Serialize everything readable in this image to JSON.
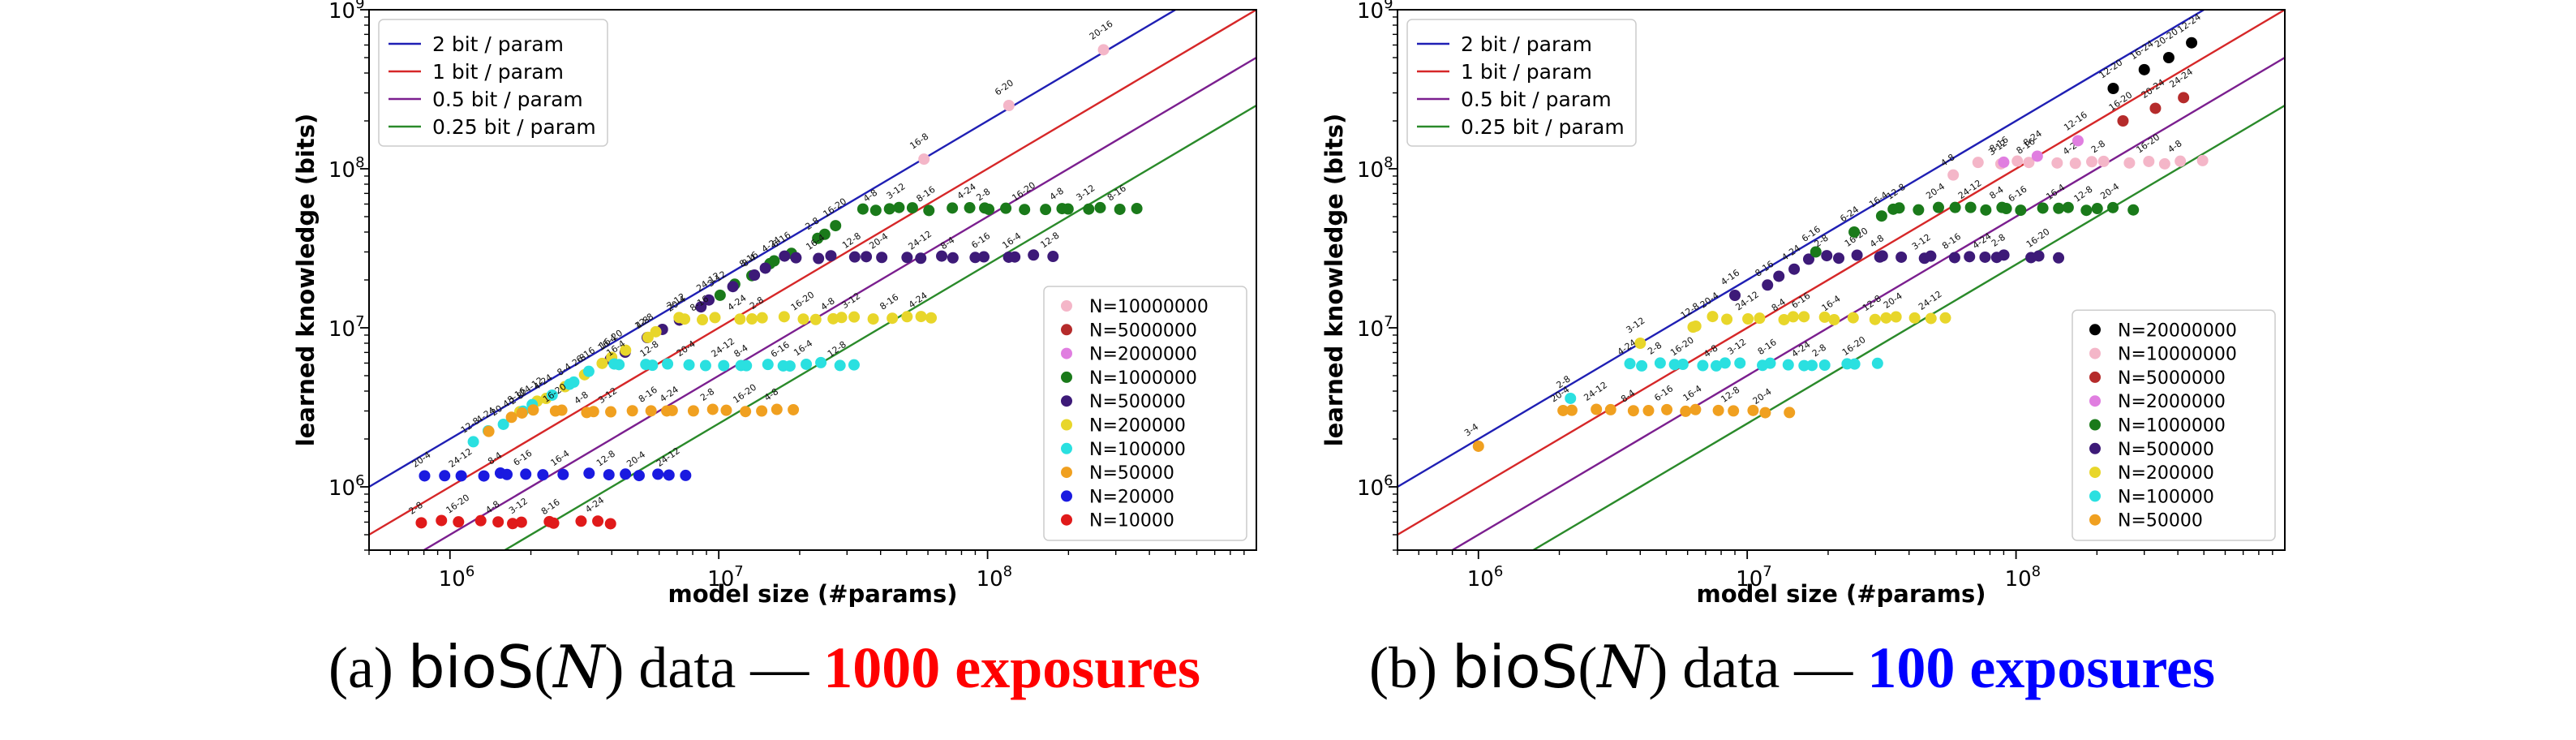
{
  "chart_data": [
    {
      "type": "scatter",
      "title": "",
      "xlabel": "model size (#params)",
      "ylabel": "learned knowledge (bits)",
      "xscale": "log",
      "yscale": "log",
      "xlim": [
        500000,
        1000000000
      ],
      "ylim": [
        400000,
        1000000000
      ],
      "xticks": [
        {
          "value": 1000000,
          "base": "10",
          "exp": "6"
        },
        {
          "value": 10000000,
          "base": "10",
          "exp": "7"
        },
        {
          "value": 100000000,
          "base": "10",
          "exp": "8"
        }
      ],
      "yticks": [
        {
          "value": 1000000,
          "base": "10",
          "exp": "6"
        },
        {
          "value": 10000000,
          "base": "10",
          "exp": "7"
        },
        {
          "value": 100000000,
          "base": "10",
          "exp": "8"
        },
        {
          "value": 1000000000,
          "base": "10",
          "exp": "9"
        }
      ],
      "reference_lines": [
        {
          "label": "2 bit / param",
          "bits_per_param": 2,
          "color": "#1f1fb4"
        },
        {
          "label": "1 bit / param",
          "bits_per_param": 1,
          "color": "#d62728"
        },
        {
          "label": "0.5 bit / param",
          "bits_per_param": 0.5,
          "color": "#7b1f8f"
        },
        {
          "label": "0.25 bit / param",
          "bits_per_param": 0.25,
          "color": "#2a8a2a"
        }
      ],
      "lines_legend_position": "top-left",
      "points_legend_position": "bottom-right",
      "series": [
        {
          "name": "N=10000000",
          "color": "#f4b6c8",
          "plateau": 0,
          "x_min": 0,
          "x_max": 0,
          "count": 0
        },
        {
          "name": "N=5000000",
          "color": "#b52b2b",
          "plateau": 0,
          "x_min": 0,
          "x_max": 0,
          "count": 0
        },
        {
          "name": "N=2000000",
          "color": "#e07ee0",
          "plateau": 0,
          "x_min": 0,
          "x_max": 0,
          "count": 0
        },
        {
          "name": "N=1000000",
          "color": "#1a7a1a",
          "plateau": 56000000,
          "x_min": 10000000,
          "x_max": 350000000,
          "count": 28
        },
        {
          "name": "N=500000",
          "color": "#3d1a78",
          "plateau": 28000000,
          "x_min": 4000000,
          "x_max": 180000000,
          "count": 27
        },
        {
          "name": "N=200000",
          "color": "#e8d62a",
          "plateau": 11500000,
          "x_min": 1800000,
          "x_max": 65000000,
          "count": 28
        },
        {
          "name": "N=100000",
          "color": "#2ae0e0",
          "plateau": 5900000,
          "x_min": 1200000,
          "x_max": 33000000,
          "count": 26
        },
        {
          "name": "N=50000",
          "color": "#f0a020",
          "plateau": 3000000,
          "x_min": 1400000,
          "x_max": 18000000,
          "count": 20
        },
        {
          "name": "N=20000",
          "color": "#1a1ae0",
          "plateau": 1200000,
          "x_min": 800000,
          "x_max": 8000000,
          "count": 16
        },
        {
          "name": "N=10000",
          "color": "#e01a1a",
          "plateau": 600000,
          "x_min": 800000,
          "x_max": 4000000,
          "count": 12
        }
      ],
      "extra_points": [
        {
          "series": "N=10000000",
          "x": 120000000,
          "y": 250000000,
          "label": "6-20"
        },
        {
          "series": "N=10000000",
          "x": 270000000,
          "y": 560000000,
          "label": "20-16"
        },
        {
          "series": "N=10000000",
          "x": 58000000,
          "y": 115000000,
          "label": "16-8"
        }
      ]
    },
    {
      "type": "scatter",
      "title": "",
      "xlabel": "model size (#params)",
      "ylabel": "learned knowledge (bits)",
      "xscale": "log",
      "yscale": "log",
      "xlim": [
        500000,
        1000000000
      ],
      "ylim": [
        400000,
        1000000000
      ],
      "xticks": [
        {
          "value": 1000000,
          "base": "10",
          "exp": "6"
        },
        {
          "value": 10000000,
          "base": "10",
          "exp": "7"
        },
        {
          "value": 100000000,
          "base": "10",
          "exp": "8"
        }
      ],
      "yticks": [
        {
          "value": 1000000,
          "base": "10",
          "exp": "6"
        },
        {
          "value": 10000000,
          "base": "10",
          "exp": "7"
        },
        {
          "value": 100000000,
          "base": "10",
          "exp": "8"
        },
        {
          "value": 1000000000,
          "base": "10",
          "exp": "9"
        }
      ],
      "reference_lines": [
        {
          "label": "2 bit / param",
          "bits_per_param": 2,
          "color": "#1f1fb4"
        },
        {
          "label": "1 bit / param",
          "bits_per_param": 1,
          "color": "#d62728"
        },
        {
          "label": "0.5 bit / param",
          "bits_per_param": 0.5,
          "color": "#7b1f8f"
        },
        {
          "label": "0.25 bit / param",
          "bits_per_param": 0.25,
          "color": "#2a8a2a"
        }
      ],
      "lines_legend_position": "top-left",
      "points_legend_position": "bottom-right",
      "series": [
        {
          "name": "N=20000000",
          "color": "#000000",
          "plateau": 0,
          "x_min": 0,
          "x_max": 0,
          "count": 0
        },
        {
          "name": "N=10000000",
          "color": "#f4b6c8",
          "plateau": 110000000,
          "x_min": 60000000,
          "x_max": 500000000,
          "count": 14
        },
        {
          "name": "N=5000000",
          "color": "#b52b2b",
          "plateau": 0,
          "x_min": 0,
          "x_max": 0,
          "count": 0
        },
        {
          "name": "N=2000000",
          "color": "#e07ee0",
          "plateau": 0,
          "x_min": 0,
          "x_max": 0,
          "count": 0
        },
        {
          "name": "N=1000000",
          "color": "#1a7a1a",
          "plateau": 56000000,
          "x_min": 30000000,
          "x_max": 270000000,
          "count": 18
        },
        {
          "name": "N=500000",
          "color": "#3d1a78",
          "plateau": 28000000,
          "x_min": 12000000,
          "x_max": 140000000,
          "count": 20
        },
        {
          "name": "N=200000",
          "color": "#e8d62a",
          "plateau": 11500000,
          "x_min": 6000000,
          "x_max": 55000000,
          "count": 18
        },
        {
          "name": "N=100000",
          "color": "#2ae0e0",
          "plateau": 5900000,
          "x_min": 3500000,
          "x_max": 30000000,
          "count": 18
        },
        {
          "name": "N=50000",
          "color": "#f0a020",
          "plateau": 3000000,
          "x_min": 2000000,
          "x_max": 14000000,
          "count": 14
        }
      ],
      "extra_points": [
        {
          "series": "N=20000000",
          "x": 450000000,
          "y": 620000000,
          "label": "12-24"
        },
        {
          "series": "N=20000000",
          "x": 370000000,
          "y": 500000000,
          "label": "20-20"
        },
        {
          "series": "N=20000000",
          "x": 300000000,
          "y": 420000000,
          "label": "16-24"
        },
        {
          "series": "N=20000000",
          "x": 230000000,
          "y": 320000000,
          "label": "12-20"
        },
        {
          "series": "N=5000000",
          "x": 420000000,
          "y": 280000000,
          "label": "24-24"
        },
        {
          "series": "N=5000000",
          "x": 330000000,
          "y": 240000000,
          "label": "20-24"
        },
        {
          "series": "N=5000000",
          "x": 250000000,
          "y": 200000000,
          "label": "16-20"
        },
        {
          "series": "N=2000000",
          "x": 170000000,
          "y": 150000000,
          "label": "12-16"
        },
        {
          "series": "N=2000000",
          "x": 120000000,
          "y": 120000000,
          "label": "8-24"
        },
        {
          "series": "N=2000000",
          "x": 90000000,
          "y": 110000000,
          "label": "8-16"
        },
        {
          "series": "N=1000000",
          "x": 25000000,
          "y": 40000000,
          "label": "6-24"
        },
        {
          "series": "N=1000000",
          "x": 18000000,
          "y": 30000000,
          "label": "6-16"
        },
        {
          "series": "N=500000",
          "x": 9000000,
          "y": 16000000,
          "label": "4-16"
        },
        {
          "series": "N=200000",
          "x": 4000000,
          "y": 8000000,
          "label": "3-12"
        },
        {
          "series": "N=100000",
          "x": 2200000,
          "y": 3600000,
          "label": "2-8"
        },
        {
          "series": "N=50000",
          "x": 1000000,
          "y": 1800000,
          "label": "3-4"
        }
      ]
    }
  ],
  "captions": [
    {
      "prefix": "(a)",
      "sans": "bioS",
      "open": "(",
      "var": "N",
      "close": ")",
      "mid": "data —",
      "highlight": "1000 exposures",
      "highlight_color": "#ff0000"
    },
    {
      "prefix": "(b)",
      "sans": "bioS",
      "open": "(",
      "var": "N",
      "close": ")",
      "mid": "data —",
      "highlight": "100 exposures",
      "highlight_color": "#0000ff"
    }
  ]
}
